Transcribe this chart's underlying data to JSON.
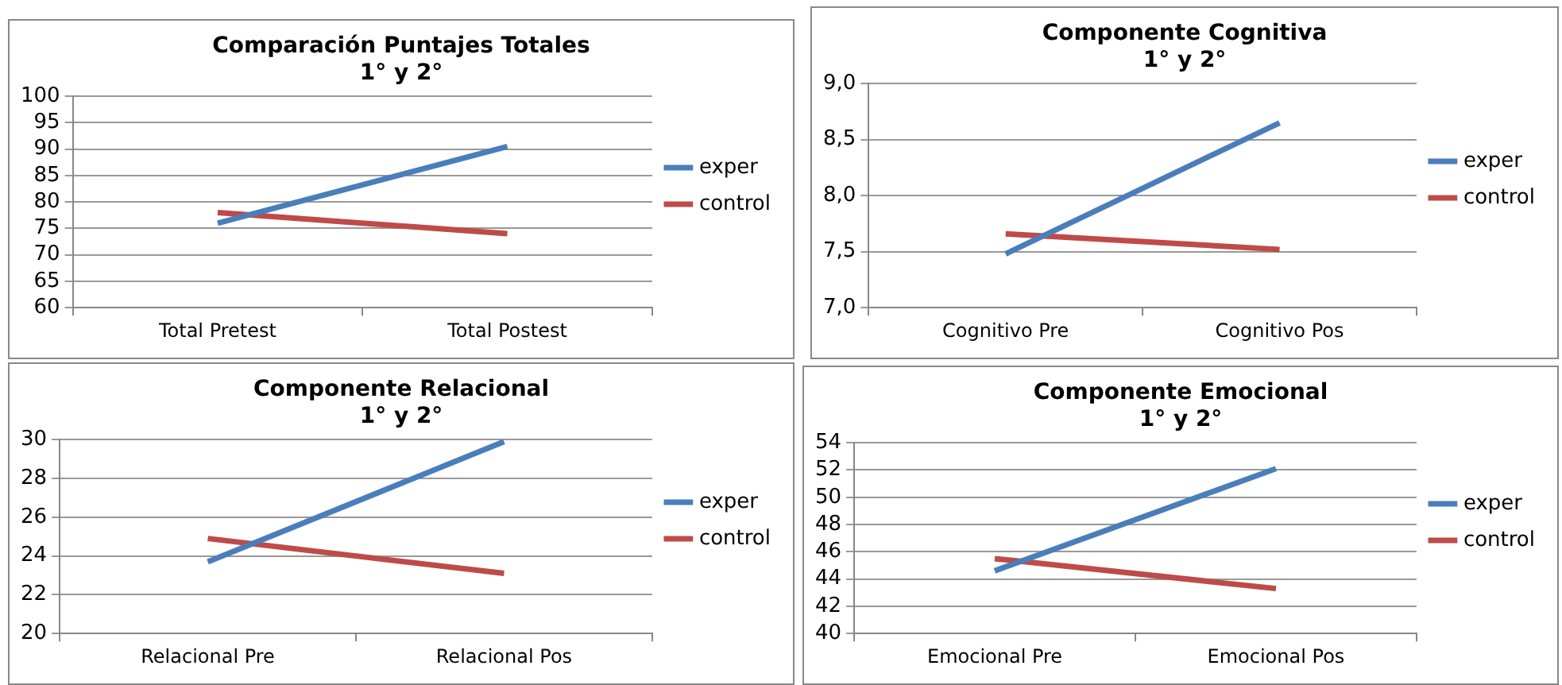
{
  "chart_data": [
    {
      "type": "line",
      "title": "Comparación Puntajes Totales\n1° y 2°",
      "categories": [
        "Total Pretest",
        "Total Postest"
      ],
      "series": [
        {
          "name": "exper",
          "color": "#4a7ebb",
          "values": [
            76,
            90.5
          ]
        },
        {
          "name": "control",
          "color": "#be4b48",
          "values": [
            78,
            74
          ]
        }
      ],
      "ylim": [
        60,
        100
      ],
      "yticks": [
        60,
        65,
        70,
        75,
        80,
        85,
        90,
        95,
        100
      ],
      "grid": "y",
      "legend": "right",
      "marker": "none",
      "line_style": "solid"
    },
    {
      "type": "line",
      "title": "Componente Cognitiva\n1° y 2°",
      "categories": [
        "Cognitivo Pre",
        "Cognitivo Pos"
      ],
      "series": [
        {
          "name": "exper",
          "color": "#4a7ebb",
          "values": [
            7.48,
            8.65
          ]
        },
        {
          "name": "control",
          "color": "#be4b48",
          "values": [
            7.66,
            7.52
          ]
        }
      ],
      "ylim": [
        7,
        9
      ],
      "yticks": [
        {
          "value": 7,
          "label": "7,0"
        },
        {
          "value": 7.5,
          "label": "7,5"
        },
        {
          "value": 8,
          "label": "8,0"
        },
        {
          "value": 8.5,
          "label": "8,5"
        },
        {
          "value": 9,
          "label": "9,0"
        }
      ],
      "grid": "y",
      "legend": "right",
      "marker": "none",
      "line_style": "solid"
    },
    {
      "type": "line",
      "title": "Componente Relacional\n1° y 2°",
      "categories": [
        "Relacional Pre",
        "Relacional Pos"
      ],
      "series": [
        {
          "name": "exper",
          "color": "#4a7ebb",
          "values": [
            23.7,
            29.9
          ]
        },
        {
          "name": "control",
          "color": "#be4b48",
          "values": [
            24.9,
            23.1
          ]
        }
      ],
      "ylim": [
        20,
        30
      ],
      "yticks": [
        20,
        22,
        24,
        26,
        28,
        30
      ],
      "grid": "y",
      "legend": "right",
      "marker": "none",
      "line_style": "solid"
    },
    {
      "type": "line",
      "title": "Componente Emocional\n1° y 2°",
      "categories": [
        "Emocional Pre",
        "Emocional Pos"
      ],
      "series": [
        {
          "name": "exper",
          "color": "#4a7ebb",
          "values": [
            44.6,
            52.1
          ]
        },
        {
          "name": "control",
          "color": "#be4b48",
          "values": [
            45.5,
            43.3
          ]
        }
      ],
      "ylim": [
        40,
        54
      ],
      "yticks": [
        40,
        42,
        44,
        46,
        48,
        50,
        52,
        54
      ],
      "grid": "y",
      "legend": "right",
      "marker": "none",
      "line_style": "solid"
    }
  ]
}
